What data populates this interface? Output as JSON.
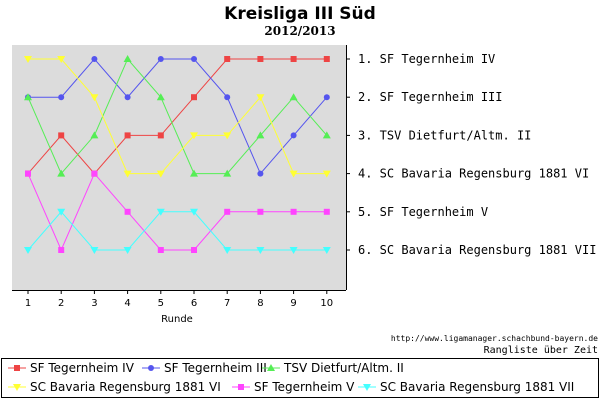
{
  "chart_data": {
    "type": "line",
    "title": "Kreisliga III Süd",
    "subtitle": "2012/2013",
    "xlabel": "Runde",
    "ylabel": "",
    "x": [
      1,
      2,
      3,
      4,
      5,
      6,
      7,
      8,
      9,
      10
    ],
    "ylim": [
      1,
      6
    ],
    "y_inverted": true,
    "grid": false,
    "legend_placement": "bottom",
    "rank_labels": [
      "1. SF Tegernheim IV",
      "2. SF Tegernheim III",
      "3. TSV Dietfurt/Altm. II",
      "4. SC Bavaria Regensburg 1881 VI",
      "5. SF Tegernheim V",
      "6. SC Bavaria Regensburg 1881 VII"
    ],
    "url": "http://www.ligamanager.schachbund-bayern.de",
    "caption": "Rangliste über Zeit",
    "series": [
      {
        "name": "SF Tegernheim IV",
        "color": "#ee4444",
        "marker": "square",
        "values": [
          4,
          3,
          4,
          3,
          3,
          2,
          1,
          1,
          1,
          1
        ]
      },
      {
        "name": "SF Tegernheim III",
        "color": "#5555ee",
        "marker": "circle",
        "values": [
          2,
          2,
          1,
          2,
          1,
          1,
          2,
          4,
          3,
          2
        ]
      },
      {
        "name": "TSV Dietfurt/Altm. II",
        "color": "#55ee55",
        "marker": "triangle-up",
        "values": [
          2,
          4,
          3,
          1,
          2,
          4,
          4,
          3,
          2,
          3
        ]
      },
      {
        "name": "SC Bavaria Regensburg 1881 VI",
        "color": "#ffff33",
        "marker": "triangle-down",
        "values": [
          1,
          1,
          2,
          4,
          4,
          3,
          3,
          2,
          4,
          4
        ]
      },
      {
        "name": "SF Tegernheim V",
        "color": "#ff44ff",
        "marker": "square",
        "values": [
          4,
          6,
          4,
          5,
          6,
          6,
          5,
          5,
          5,
          5
        ]
      },
      {
        "name": "SC Bavaria Regensburg 1881 VII",
        "color": "#44ffff",
        "marker": "triangle-down",
        "values": [
          6,
          5,
          6,
          6,
          5,
          5,
          6,
          6,
          6,
          6
        ]
      }
    ]
  }
}
